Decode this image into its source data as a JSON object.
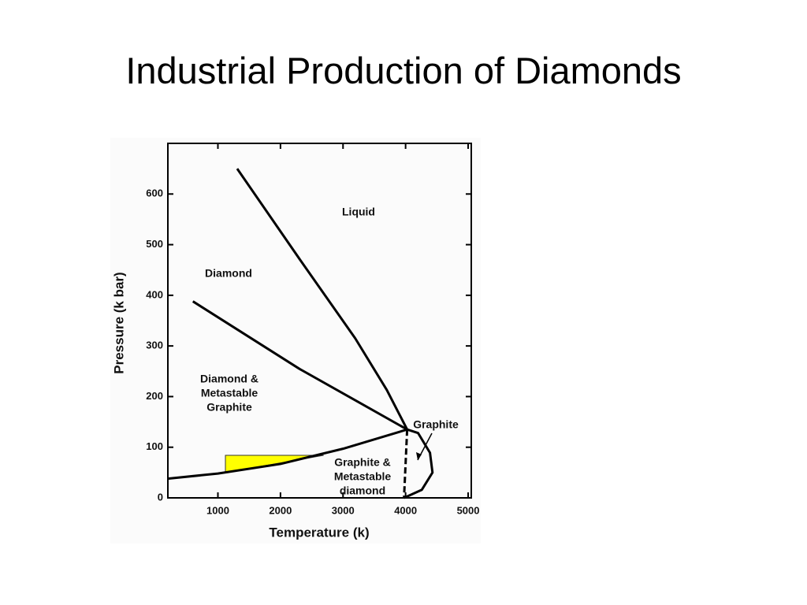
{
  "chart_data": {
    "type": "line",
    "title": "Industrial Production of Diamonds",
    "x_label": "Temperature (k)",
    "y_label": "Pressure (k bar)",
    "xlim": [
      200,
      5050
    ],
    "ylim": [
      0,
      700
    ],
    "xticks": [
      1000,
      2000,
      3000,
      4000,
      5000
    ],
    "yticks": [
      0,
      100,
      200,
      300,
      400,
      500,
      600
    ],
    "series": [
      {
        "color": "#000000",
        "dash": false,
        "x": [
          200,
          1000,
          2000,
          3000,
          4025
        ],
        "values": [
          38,
          48,
          67,
          97,
          135
        ]
      },
      {
        "color": "#000000",
        "dash": false,
        "x": [
          600,
          2300,
          4025
        ],
        "values": [
          388,
          255,
          135
        ]
      },
      {
        "color": "#000000",
        "dash": false,
        "x": [
          1308,
          2314,
          3195,
          3700,
          4025
        ],
        "values": [
          650,
          470,
          315,
          213,
          135
        ]
      },
      {
        "color": "#000000",
        "dash": false,
        "x": [
          4025,
          4200,
          4390,
          4430,
          4260,
          3975
        ],
        "values": [
          135,
          128,
          89,
          50,
          16,
          0
        ]
      },
      {
        "color": "#000000",
        "dash": true,
        "x": [
          4025,
          3975
        ],
        "values": [
          135,
          0
        ]
      }
    ],
    "highlight": {
      "color": "#ffff00",
      "x": [
        1120,
        2690,
        1120
      ],
      "values": [
        84,
        84,
        50
      ]
    },
    "annotations": [
      [
        "Liquid"
      ],
      [
        "Diamond"
      ],
      [
        "Diamond &",
        "Metastable",
        "Graphite"
      ],
      [
        "Graphite"
      ],
      [
        "Graphite &",
        "Metastable",
        "diamond"
      ]
    ]
  }
}
